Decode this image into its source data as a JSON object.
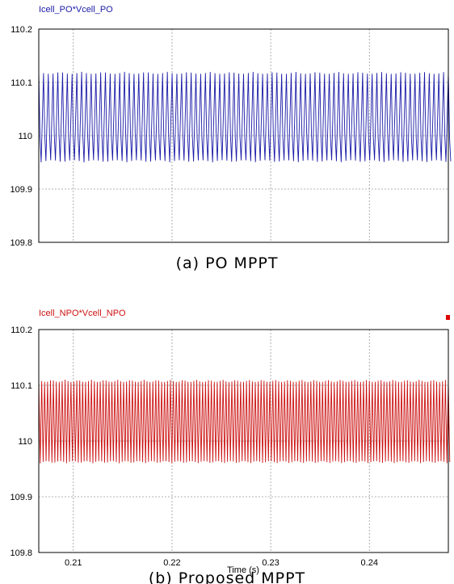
{
  "chart_data": [
    {
      "type": "line",
      "series": [
        {
          "name": "Icell_PO*Vcell_PO",
          "color": "#1a1aa8",
          "oscillation": {
            "min": 109.95,
            "max": 110.12,
            "center": 110.0,
            "cycles": 86
          }
        }
      ],
      "ylim": [
        109.8,
        110.2
      ],
      "yticks": [
        "110.2",
        "110.1",
        "110",
        "109.9",
        "109.8"
      ],
      "xlim": [
        0.2065,
        0.248
      ],
      "xgrid": [
        0.21,
        0.22,
        0.23,
        0.24
      ],
      "xticks": [],
      "xlabel": "",
      "grid": true,
      "caption": "(a) PO MPPT"
    },
    {
      "type": "line",
      "series": [
        {
          "name": "Icell_NPO*Vcell_NPO",
          "color": "#cc1111",
          "oscillation": {
            "min": 109.96,
            "max": 110.11,
            "center": 110.03,
            "cycles": 140
          }
        }
      ],
      "ylim": [
        109.8,
        110.2
      ],
      "yticks": [
        "110.2",
        "110.1",
        "110",
        "109.9",
        "109.8"
      ],
      "xlim": [
        0.2065,
        0.248
      ],
      "xgrid": [
        0.21,
        0.22,
        0.23,
        0.24
      ],
      "xticks": [
        "0.21",
        "0.22",
        "0.23",
        "0.24"
      ],
      "xlabel": "Time (s)",
      "grid": true,
      "caption": "(b) Proposed MPPT"
    }
  ]
}
